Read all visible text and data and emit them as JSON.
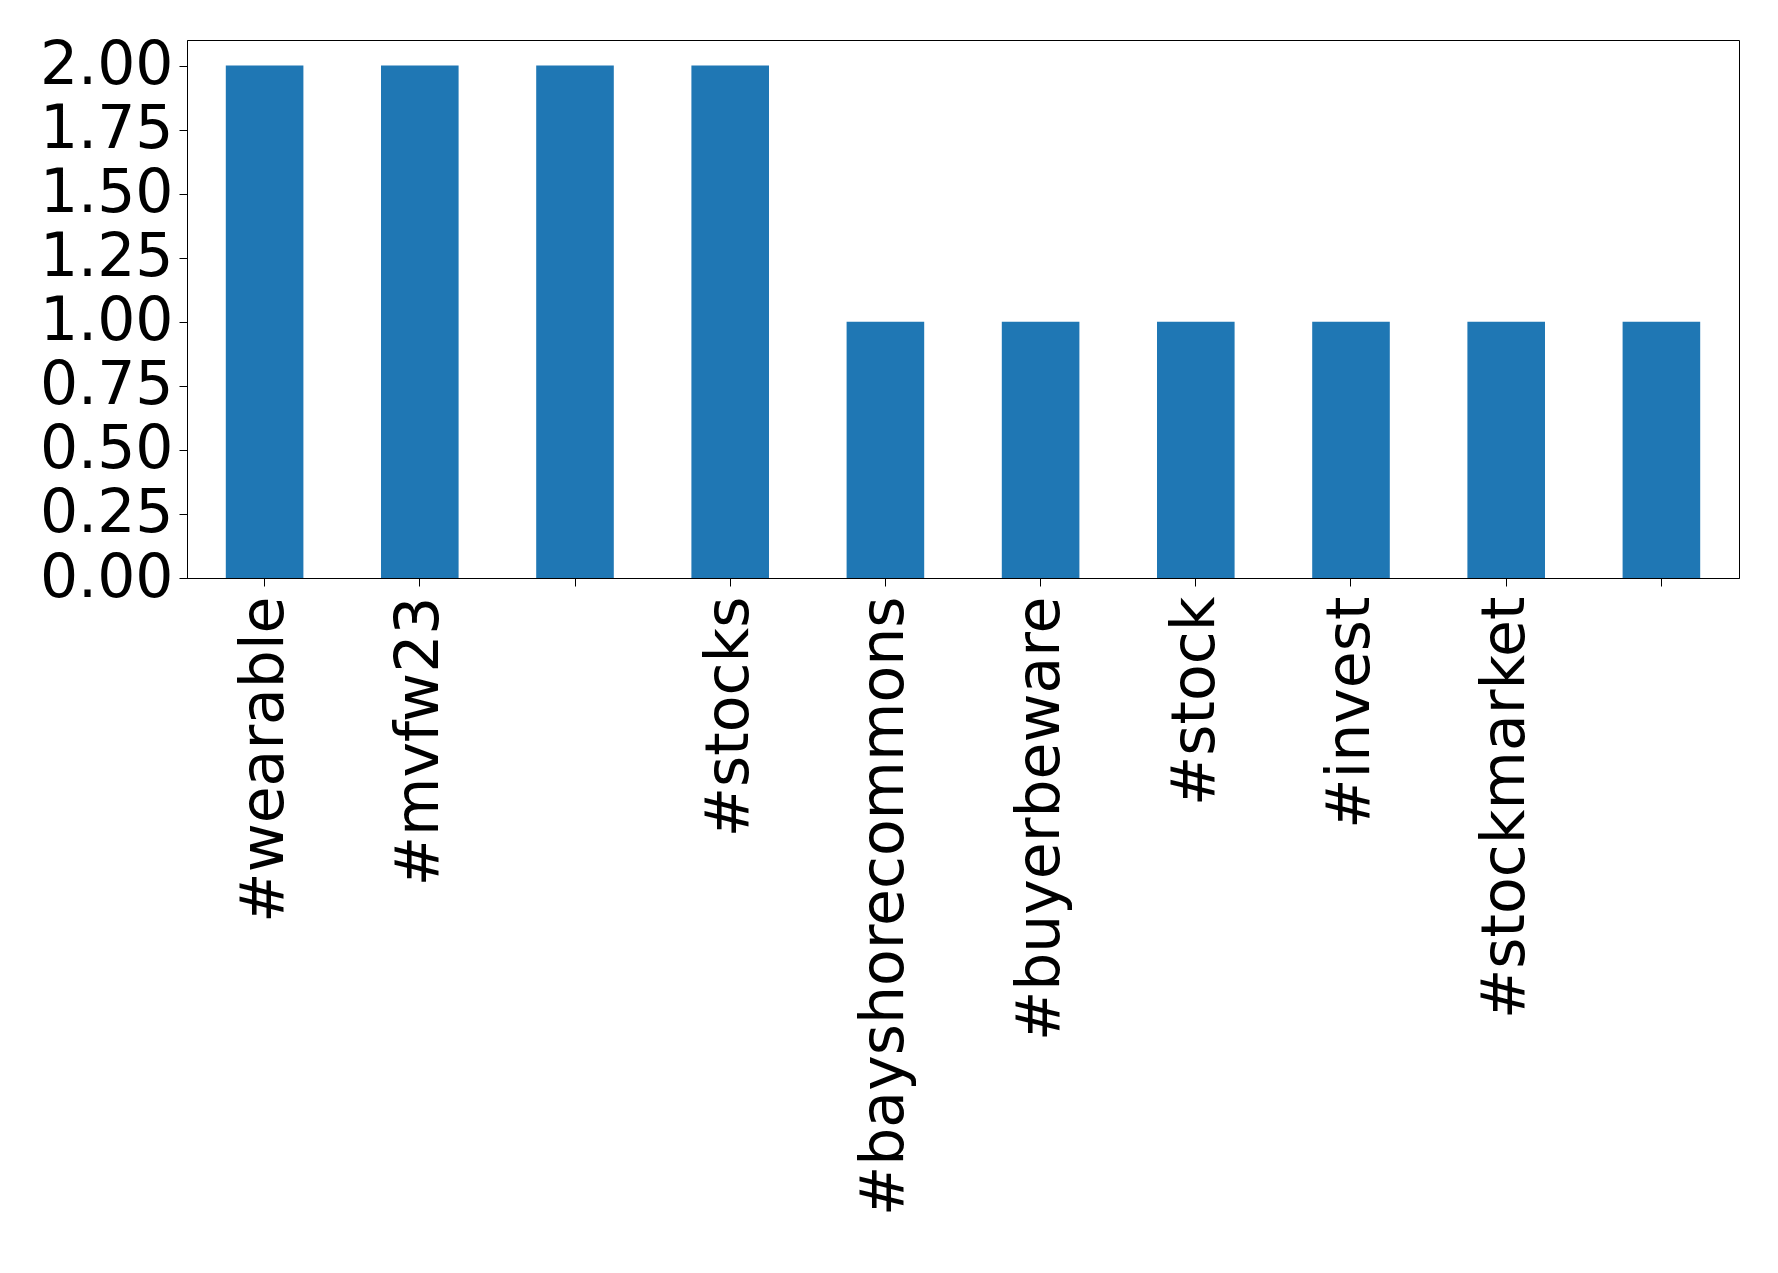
{
  "chart_data": {
    "type": "bar",
    "categories": [
      "#wearable",
      "#mvfw23",
      null,
      "#stocks",
      "#bayshorecommons",
      "#buyerbeware",
      "#stock",
      "#invest",
      "#stockmarket",
      null
    ],
    "values": [
      2,
      2,
      2,
      2,
      1,
      1,
      1,
      1,
      1,
      1
    ],
    "color": "#1f77b4",
    "ylim": [
      0,
      2.1
    ],
    "yticks": [
      {
        "value": 0,
        "label": "0.00"
      },
      {
        "value": 0.25,
        "label": "0.25"
      },
      {
        "value": 0.5,
        "label": "0.50"
      },
      {
        "value": 0.75,
        "label": "0.75"
      },
      {
        "value": 1,
        "label": "1.00"
      },
      {
        "value": 1.25,
        "label": "1.25"
      },
      {
        "value": 1.5,
        "label": "1.50"
      },
      {
        "value": 1.75,
        "label": "1.75"
      },
      {
        "value": 2,
        "label": "2.00"
      }
    ],
    "grid": false
  }
}
